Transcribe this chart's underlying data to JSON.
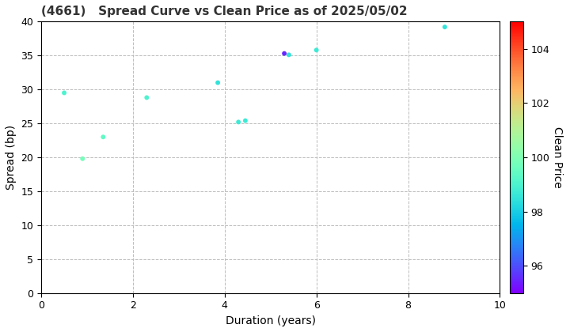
{
  "title": "(4661)   Spread Curve vs Clean Price as of 2025/05/02",
  "xlabel": "Duration (years)",
  "ylabel": "Spread (bp)",
  "colorbar_label": "Clean Price",
  "xlim": [
    0,
    10
  ],
  "ylim": [
    0,
    40
  ],
  "xticks": [
    0,
    2,
    4,
    6,
    8,
    10
  ],
  "yticks": [
    0,
    5,
    10,
    15,
    20,
    25,
    30,
    35,
    40
  ],
  "cmap_min": 95,
  "cmap_max": 105,
  "colorbar_ticks": [
    96,
    98,
    100,
    102,
    104
  ],
  "points": [
    {
      "duration": 0.5,
      "spread": 29.5,
      "clean_price": 99.0
    },
    {
      "duration": 0.9,
      "spread": 19.8,
      "clean_price": 99.8
    },
    {
      "duration": 1.35,
      "spread": 23.0,
      "clean_price": 99.4
    },
    {
      "duration": 2.3,
      "spread": 28.8,
      "clean_price": 99.0
    },
    {
      "duration": 3.85,
      "spread": 31.0,
      "clean_price": 98.5
    },
    {
      "duration": 4.3,
      "spread": 25.2,
      "clean_price": 98.7
    },
    {
      "duration": 4.45,
      "spread": 25.4,
      "clean_price": 98.7
    },
    {
      "duration": 5.3,
      "spread": 35.3,
      "clean_price": 95.5
    },
    {
      "duration": 5.4,
      "spread": 35.1,
      "clean_price": 98.5
    },
    {
      "duration": 6.0,
      "spread": 35.8,
      "clean_price": 98.7
    },
    {
      "duration": 8.8,
      "spread": 39.2,
      "clean_price": 98.5
    }
  ],
  "marker_size": 18,
  "background_color": "#ffffff",
  "grid_color": "#bbbbbb",
  "title_fontsize": 11,
  "axis_label_fontsize": 10,
  "tick_fontsize": 9
}
